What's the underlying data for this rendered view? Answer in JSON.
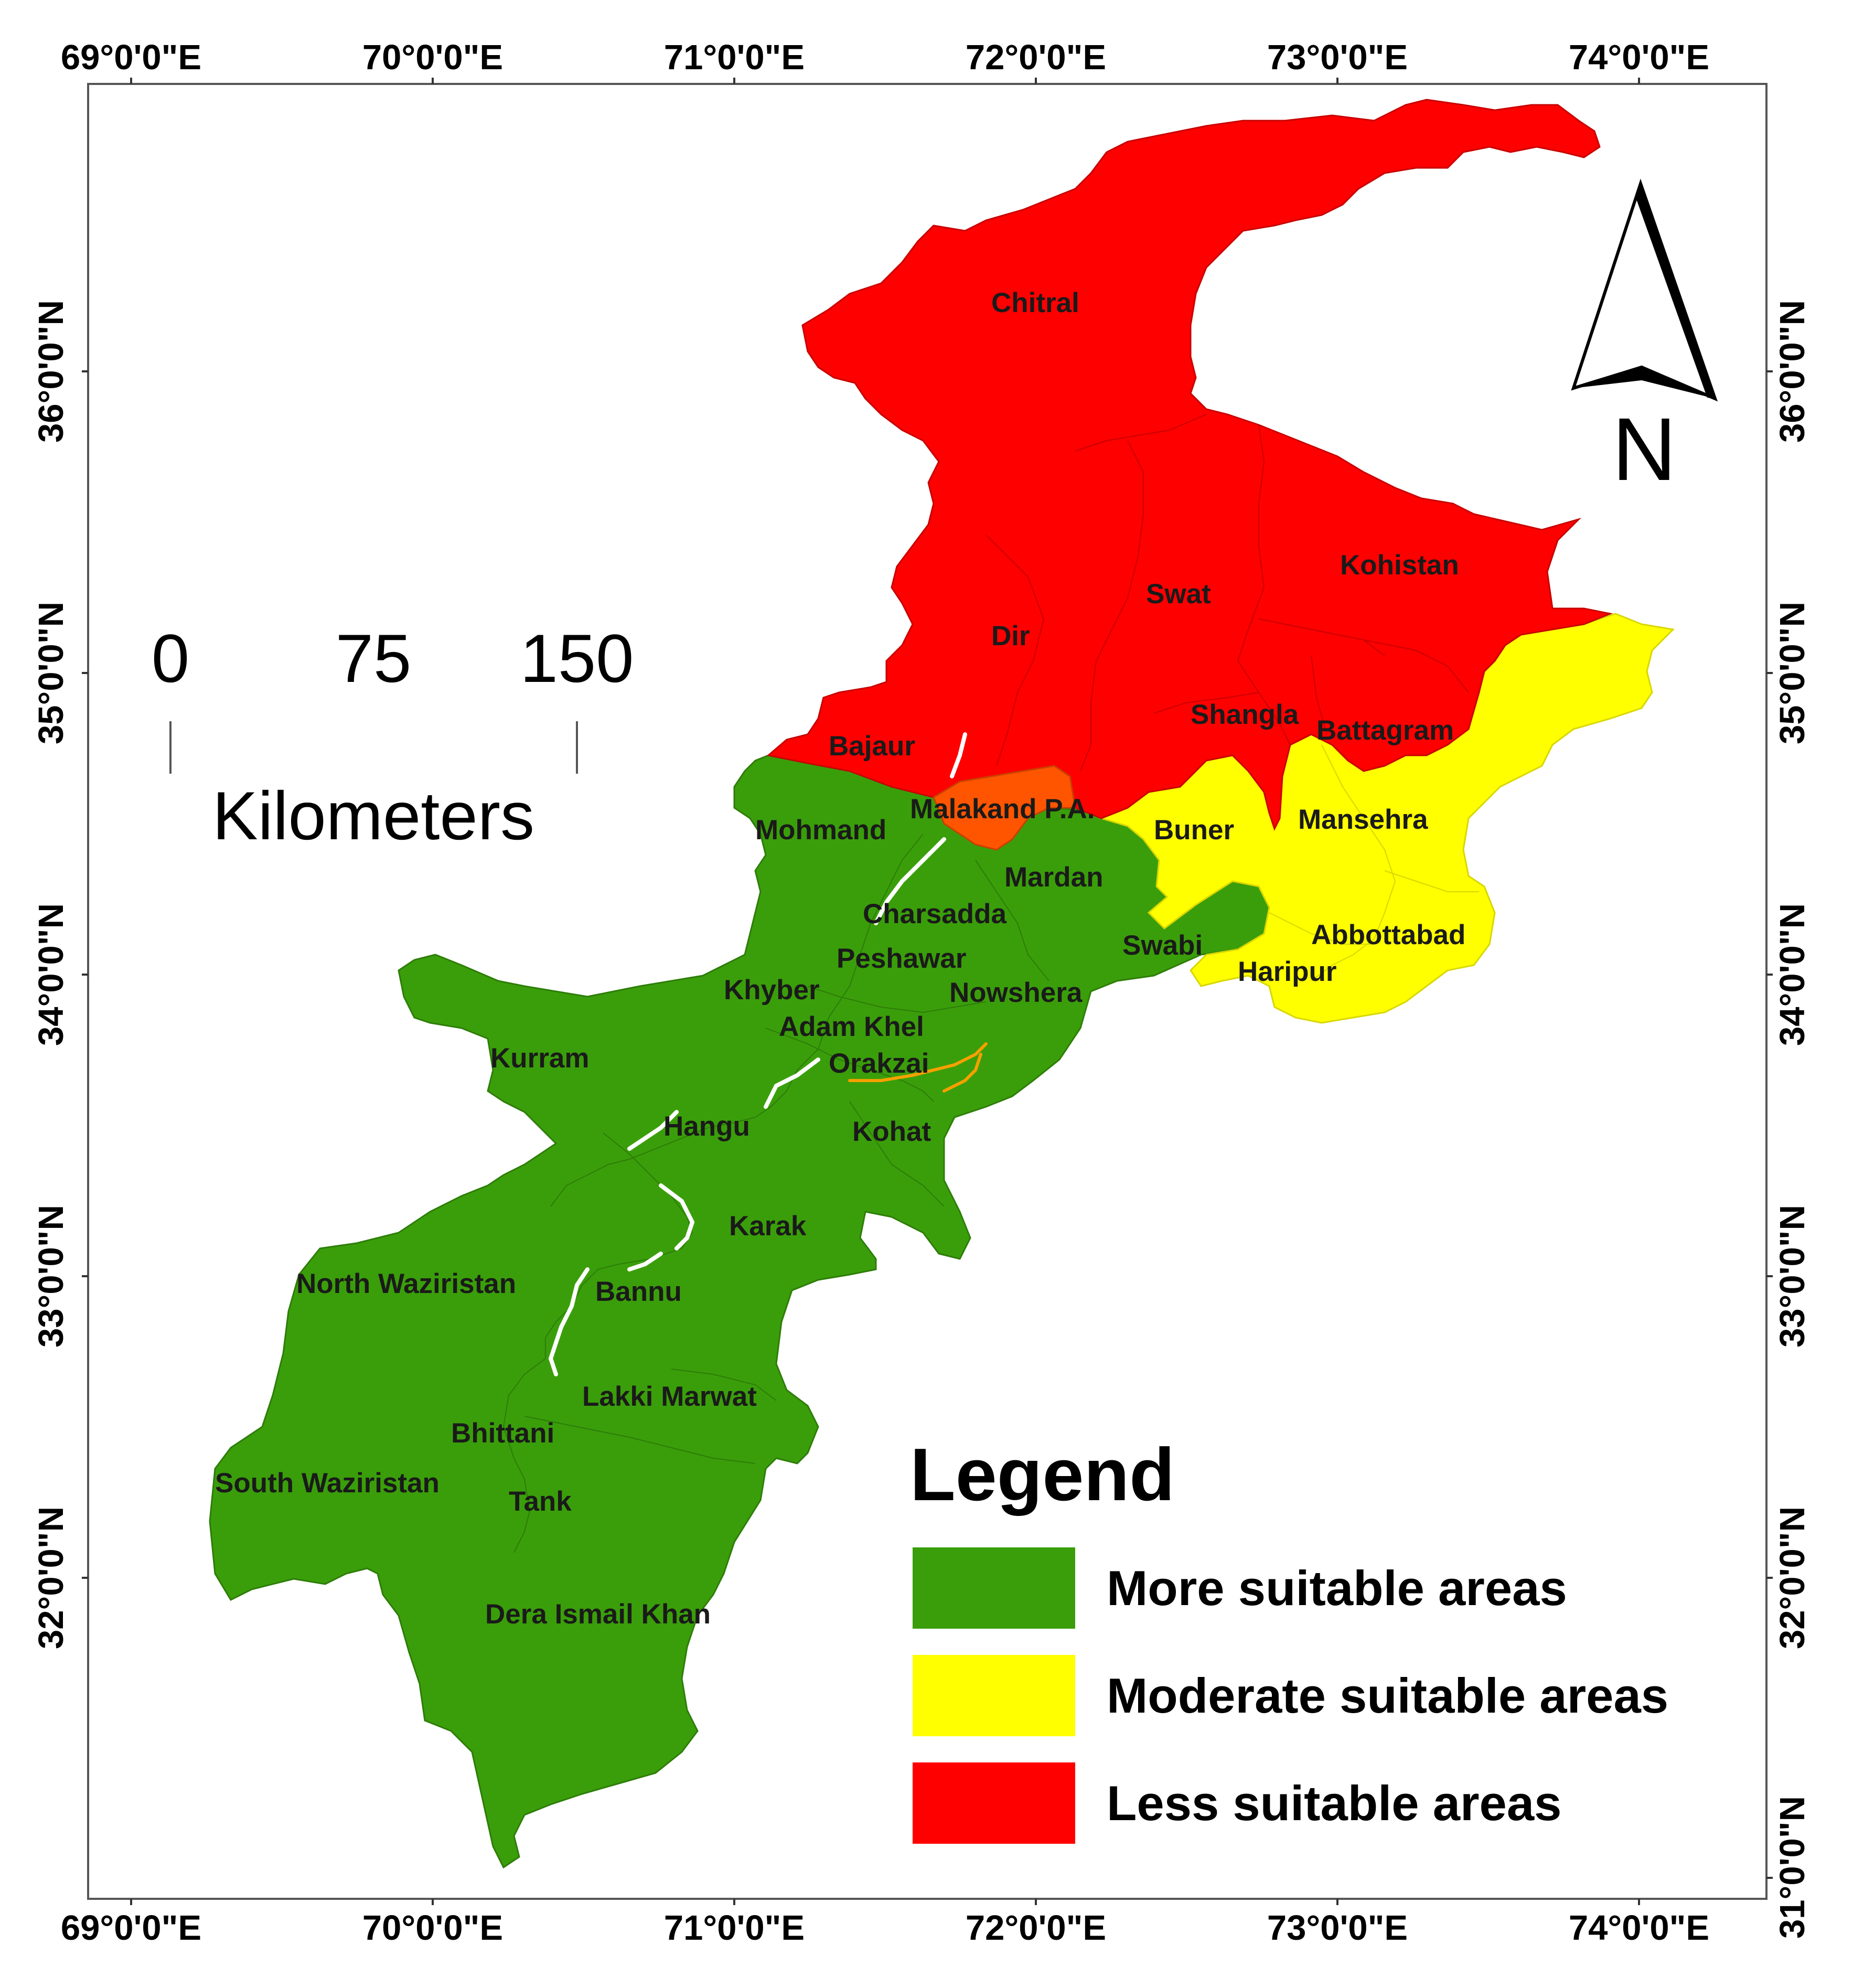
{
  "map": {
    "colors": {
      "more_suitable": "#3a9e0a",
      "moderate_suitable": "#ffff00",
      "less_suitable": "#ff0000",
      "malakand": "#ff5500"
    },
    "top_ticks": [
      "69°0'0\"E",
      "70°0'0\"E",
      "71°0'0\"E",
      "72°0'0\"E",
      "73°0'0\"E",
      "74°0'0\"E"
    ],
    "bottom_ticks": [
      "69°0'0\"E",
      "70°0'0\"E",
      "71°0'0\"E",
      "72°0'0\"E",
      "73°0'0\"E",
      "74°0'0\"E"
    ],
    "left_ticks": [
      "36°0'0\"N",
      "35°0'0\"N",
      "34°0'0\"N",
      "33°0'0\"N",
      "32°0'0\"N"
    ],
    "right_ticks": [
      "36°0'0\"N",
      "35°0'0\"N",
      "34°0'0\"N",
      "33°0'0\"N",
      "32°0'0\"N",
      "31°0'0\"N"
    ],
    "districts": {
      "chitral": "Chitral",
      "kohistan": "Kohistan",
      "swat": "Swat",
      "dir": "Dir",
      "shangla": "Shangla",
      "battagram": "Battagram",
      "bajaur": "Bajaur",
      "malakand": "Malakand P.A.",
      "buner": "Buner",
      "mansehra": "Mansehra",
      "mohmand": "Mohmand",
      "mardan": "Mardan",
      "charsadda": "Charsadda",
      "swabi": "Swabi",
      "abbottabad": "Abbottabad",
      "peshawar": "Peshawar",
      "haripur": "Haripur",
      "khyber": "Khyber",
      "nowshera": "Nowshera",
      "adam_khel": "Adam Khel",
      "kurram": "Kurram",
      "orakzai": "Orakzai",
      "hangu": "Hangu",
      "kohat": "Kohat",
      "karak": "Karak",
      "north_waziristan": "North Waziristan",
      "bannu": "Bannu",
      "lakki_marwat": "Lakki Marwat",
      "bhittani": "Bhittani",
      "south_waziristan": "South Waziristan",
      "tank": "Tank",
      "dera_ismail_khan": "Dera Ismail Khan"
    },
    "scale_bar": {
      "labels": [
        "0",
        "75",
        "150"
      ],
      "unit": "Kilometers"
    },
    "north_arrow": {
      "label": "N"
    },
    "legend": {
      "title": "Legend",
      "items": [
        {
          "label": "More suitable areas",
          "color": "#3a9e0a"
        },
        {
          "label": "Moderate suitable areas",
          "color": "#ffff00"
        },
        {
          "label": "Less suitable areas",
          "color": "#ff0000"
        }
      ]
    }
  }
}
